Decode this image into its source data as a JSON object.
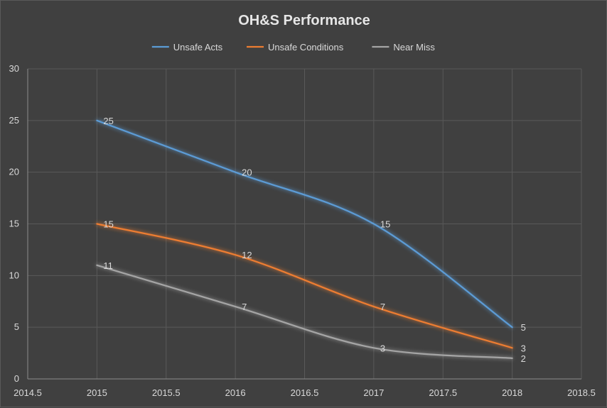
{
  "chart_data": {
    "type": "line",
    "title": "OH&S Performance",
    "xlabel": "",
    "ylabel": "",
    "xlim": [
      2014.5,
      2018.5
    ],
    "ylim": [
      0,
      30
    ],
    "x_ticks": [
      "2014.5",
      "2015",
      "2015.5",
      "2016",
      "2016.5",
      "2017",
      "2017.5",
      "2018",
      "2018.5"
    ],
    "y_ticks": [
      "0",
      "5",
      "10",
      "15",
      "20",
      "25",
      "30"
    ],
    "grid": true,
    "smooth": true,
    "legend_position": "top",
    "x": [
      2015,
      2016,
      2017,
      2018
    ],
    "series": [
      {
        "name": "Unsafe Acts",
        "color": "#5b9bd5",
        "values": [
          25,
          20,
          15,
          5
        ]
      },
      {
        "name": "Unsafe Conditions",
        "color": "#ed7d31",
        "values": [
          15,
          12,
          7,
          3
        ]
      },
      {
        "name": "Near Miss",
        "color": "#a5a5a5",
        "values": [
          11,
          7,
          3,
          2
        ]
      }
    ]
  }
}
